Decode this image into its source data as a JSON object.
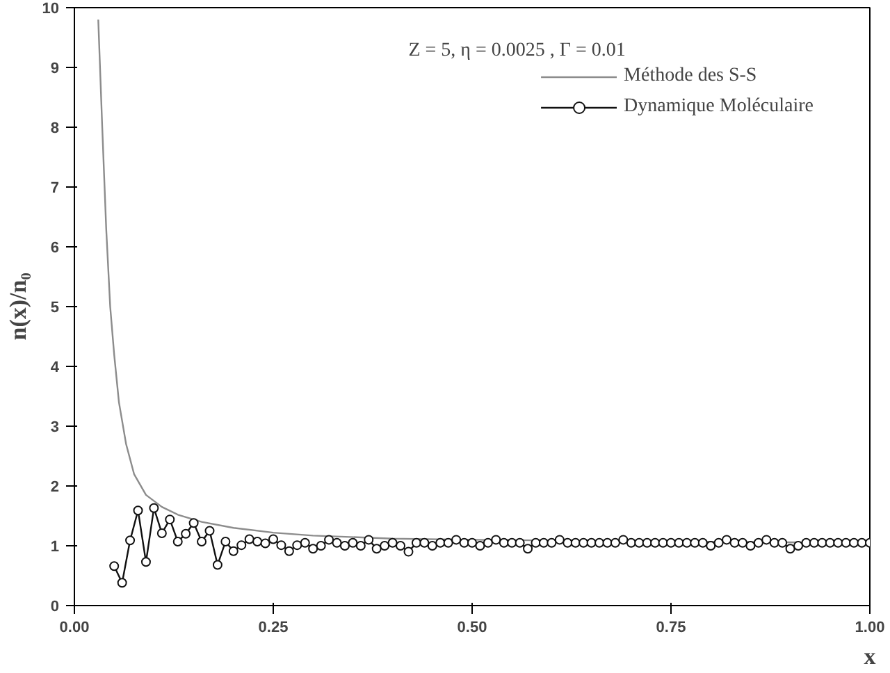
{
  "chart_data": {
    "type": "line",
    "xlabel": "x",
    "ylabel": "n(x)/n₀",
    "annotations": [
      "Z =  5,     η = 0.0025 , Γ = 0.01"
    ],
    "xlim": [
      0,
      1
    ],
    "ylim": [
      0,
      10
    ],
    "xticks": [
      {
        "value": 0,
        "label": "0.00"
      },
      {
        "value": 0.25,
        "label": "0.25"
      },
      {
        "value": 0.5,
        "label": "0.50"
      },
      {
        "value": 0.75,
        "label": "0.75"
      },
      {
        "value": 1,
        "label": "1.00"
      }
    ],
    "yticks": [
      0,
      1,
      2,
      3,
      4,
      5,
      6,
      7,
      8,
      9,
      10
    ],
    "grid": false,
    "legend": "top right",
    "series": [
      {
        "name": "Méthode des S-S",
        "color": "#8c8c8c",
        "marker": "none",
        "x": [
          0.03,
          0.035,
          0.04,
          0.045,
          0.05,
          0.056,
          0.065,
          0.075,
          0.09,
          0.11,
          0.13,
          0.16,
          0.2,
          0.25,
          0.3,
          0.4,
          0.5,
          0.75,
          1.0
        ],
        "values": [
          9.8,
          8.0,
          6.3,
          5.0,
          4.2,
          3.4,
          2.7,
          2.2,
          1.85,
          1.65,
          1.52,
          1.4,
          1.3,
          1.22,
          1.17,
          1.12,
          1.1,
          1.07,
          1.05
        ]
      },
      {
        "name": "Dynamique Moléculaire",
        "color": "#111111",
        "marker": "circle",
        "x": [
          0.05,
          0.06,
          0.07,
          0.08,
          0.09,
          0.1,
          0.11,
          0.12,
          0.13,
          0.14,
          0.15,
          0.16,
          0.17,
          0.18,
          0.19,
          0.2,
          0.21,
          0.22,
          0.23,
          0.24,
          0.25,
          0.26,
          0.27,
          0.28,
          0.29,
          0.3,
          0.31,
          0.32,
          0.33,
          0.34,
          0.35,
          0.36,
          0.37,
          0.38,
          0.39,
          0.4,
          0.41,
          0.42,
          0.43,
          0.44,
          0.45,
          0.46,
          0.47,
          0.48,
          0.49,
          0.5,
          0.51,
          0.52,
          0.53,
          0.54,
          0.55,
          0.56,
          0.57,
          0.58,
          0.59,
          0.6,
          0.61,
          0.62,
          0.63,
          0.64,
          0.65,
          0.66,
          0.67,
          0.68,
          0.69,
          0.7,
          0.71,
          0.72,
          0.73,
          0.74,
          0.75,
          0.76,
          0.77,
          0.78,
          0.79,
          0.8,
          0.81,
          0.82,
          0.83,
          0.84,
          0.85,
          0.86,
          0.87,
          0.88,
          0.89,
          0.9,
          0.91,
          0.92,
          0.93,
          0.94,
          0.95,
          0.96,
          0.97,
          0.98,
          0.99,
          1.0
        ],
        "values": [
          0.66,
          0.38,
          1.09,
          1.59,
          0.73,
          1.63,
          1.21,
          1.44,
          1.07,
          1.2,
          1.38,
          1.07,
          1.25,
          0.68,
          1.07,
          0.91,
          1.01,
          1.11,
          1.07,
          1.04,
          1.11,
          1.01,
          0.91,
          1.01,
          1.05,
          0.95,
          1.0,
          1.1,
          1.05,
          1.0,
          1.05,
          1.0,
          1.1,
          0.95,
          1.0,
          1.05,
          1.0,
          0.9,
          1.05,
          1.05,
          1.0,
          1.05,
          1.05,
          1.1,
          1.05,
          1.05,
          1.0,
          1.05,
          1.1,
          1.05,
          1.05,
          1.05,
          0.95,
          1.05,
          1.05,
          1.05,
          1.1,
          1.05,
          1.05,
          1.05,
          1.05,
          1.05,
          1.05,
          1.05,
          1.1,
          1.05,
          1.05,
          1.05,
          1.05,
          1.05,
          1.05,
          1.05,
          1.05,
          1.05,
          1.05,
          1.0,
          1.05,
          1.1,
          1.05,
          1.05,
          1.0,
          1.05,
          1.1,
          1.05,
          1.05,
          0.95,
          1.0,
          1.05,
          1.05,
          1.05,
          1.05,
          1.05,
          1.05,
          1.05,
          1.05,
          1.05
        ]
      }
    ]
  }
}
